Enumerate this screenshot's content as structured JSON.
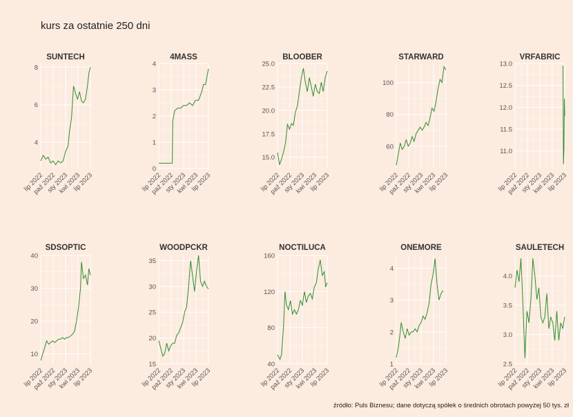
{
  "title": "kurs za ostatnie 250 dni",
  "caption": "źródło: Puls Biznesu; dane dotyczą spółek o średnich obrotach powyżej 50 tys. zł",
  "colors": {
    "background": "#fcebdf",
    "grid": "#ffffff",
    "series": "#2e8b2e"
  },
  "chart_data": [
    {
      "type": "line",
      "title": "SUNTECH",
      "x_ticks": [
        "lip 2022",
        "paź 2022",
        "sty 2023",
        "kwi 2023",
        "lip 2023"
      ],
      "ylim": [
        2.6,
        8.2
      ],
      "y_ticks": [
        4,
        6,
        8
      ],
      "y_tick_labels": [
        "4",
        "6",
        "8"
      ],
      "values": [
        [
          0,
          3.0
        ],
        [
          5,
          3.3
        ],
        [
          10,
          3.1
        ],
        [
          15,
          3.2
        ],
        [
          20,
          2.9
        ],
        [
          25,
          3.0
        ],
        [
          30,
          2.8
        ],
        [
          35,
          3.0
        ],
        [
          40,
          2.9
        ],
        [
          45,
          3.0
        ],
        [
          50,
          3.5
        ],
        [
          55,
          3.8
        ],
        [
          58,
          4.6
        ],
        [
          62,
          5.3
        ],
        [
          64,
          6.2
        ],
        [
          66,
          7.0
        ],
        [
          70,
          6.6
        ],
        [
          74,
          6.3
        ],
        [
          78,
          6.7
        ],
        [
          82,
          6.2
        ],
        [
          86,
          6.1
        ],
        [
          90,
          6.3
        ],
        [
          94,
          7.0
        ],
        [
          97,
          7.7
        ],
        [
          100,
          8.0
        ]
      ]
    },
    {
      "type": "line",
      "title": "4MASS",
      "x_ticks": [
        "lip 2022",
        "paź 2022",
        "sty 2023",
        "kwi 2023",
        "lip 2023"
      ],
      "ylim": [
        0,
        4
      ],
      "y_ticks": [
        0,
        1,
        2,
        3,
        4
      ],
      "y_tick_labels": [
        "0",
        "1",
        "2",
        "3",
        "4"
      ],
      "values": [
        [
          0,
          0.2
        ],
        [
          10,
          0.2
        ],
        [
          20,
          0.2
        ],
        [
          27,
          0.2
        ],
        [
          28,
          1.8
        ],
        [
          32,
          2.2
        ],
        [
          38,
          2.3
        ],
        [
          44,
          2.3
        ],
        [
          50,
          2.4
        ],
        [
          56,
          2.4
        ],
        [
          62,
          2.5
        ],
        [
          68,
          2.4
        ],
        [
          74,
          2.6
        ],
        [
          80,
          2.6
        ],
        [
          86,
          2.9
        ],
        [
          90,
          3.2
        ],
        [
          94,
          3.2
        ],
        [
          97,
          3.5
        ],
        [
          100,
          3.8
        ]
      ]
    },
    {
      "type": "line",
      "title": "BLOOBER",
      "x_ticks": [
        "lip 2022",
        "paź 2022",
        "sty 2023",
        "kwi 2023",
        "lip 2023"
      ],
      "ylim": [
        13.8,
        25.0
      ],
      "y_ticks": [
        15,
        17.5,
        20,
        22.5,
        25
      ],
      "y_tick_labels": [
        "15.0",
        "17.5",
        "20.0",
        "22.5",
        "25.0"
      ],
      "values": [
        [
          0,
          15.5
        ],
        [
          4,
          14.2
        ],
        [
          8,
          14.8
        ],
        [
          12,
          15.5
        ],
        [
          16,
          16.5
        ],
        [
          20,
          18.5
        ],
        [
          24,
          18.0
        ],
        [
          28,
          18.6
        ],
        [
          32,
          18.4
        ],
        [
          36,
          19.8
        ],
        [
          40,
          20.5
        ],
        [
          44,
          22.0
        ],
        [
          48,
          23.5
        ],
        [
          52,
          24.5
        ],
        [
          56,
          23.0
        ],
        [
          60,
          22.0
        ],
        [
          64,
          23.5
        ],
        [
          68,
          22.5
        ],
        [
          72,
          21.5
        ],
        [
          76,
          22.8
        ],
        [
          80,
          22.0
        ],
        [
          84,
          21.8
        ],
        [
          88,
          23.0
        ],
        [
          92,
          22.0
        ],
        [
          96,
          23.5
        ],
        [
          100,
          24.2
        ]
      ]
    },
    {
      "type": "line",
      "title": "STARWARD",
      "x_ticks": [
        "lip 2022",
        "paź 2022",
        "sty 2023",
        "kwi 2023",
        "lip 2023"
      ],
      "ylim": [
        46,
        112
      ],
      "y_ticks": [
        60,
        80,
        100
      ],
      "y_tick_labels": [
        "60",
        "80",
        "100"
      ],
      "values": [
        [
          0,
          48
        ],
        [
          4,
          55
        ],
        [
          8,
          62
        ],
        [
          12,
          58
        ],
        [
          16,
          60
        ],
        [
          20,
          64
        ],
        [
          24,
          60
        ],
        [
          28,
          62
        ],
        [
          32,
          66
        ],
        [
          36,
          63
        ],
        [
          40,
          68
        ],
        [
          44,
          70
        ],
        [
          48,
          72
        ],
        [
          52,
          70
        ],
        [
          56,
          72
        ],
        [
          60,
          75
        ],
        [
          64,
          73
        ],
        [
          68,
          78
        ],
        [
          72,
          84
        ],
        [
          76,
          82
        ],
        [
          80,
          88
        ],
        [
          84,
          96
        ],
        [
          88,
          102
        ],
        [
          92,
          100
        ],
        [
          96,
          110
        ],
        [
          100,
          108
        ]
      ]
    },
    {
      "type": "line",
      "title": "VRFABRIC",
      "x_ticks": [
        "lip 2022",
        "paź 2022",
        "sty 2023",
        "kwi 2023",
        "lip 2023"
      ],
      "ylim": [
        10.6,
        13.0
      ],
      "y_ticks": [
        11,
        11.5,
        12,
        12.5,
        13
      ],
      "y_tick_labels": [
        "11.0",
        "11.5",
        "12.0",
        "12.5",
        "13.0"
      ],
      "values": [
        [
          96.5,
          12.95
        ],
        [
          97.5,
          10.7
        ],
        [
          98.5,
          11.0
        ],
        [
          99.5,
          12.2
        ],
        [
          100,
          11.8
        ]
      ]
    },
    {
      "type": "line",
      "title": "SDSOPTIC",
      "x_ticks": [
        "lip 2022",
        "paź 2022",
        "sty 2023",
        "kwi 2023",
        "lip 2023"
      ],
      "ylim": [
        7,
        40
      ],
      "y_ticks": [
        10,
        20,
        30,
        40
      ],
      "y_tick_labels": [
        "10",
        "20",
        "30",
        "40"
      ],
      "values": [
        [
          0,
          8
        ],
        [
          4,
          10
        ],
        [
          8,
          12
        ],
        [
          12,
          14
        ],
        [
          16,
          13
        ],
        [
          20,
          13.5
        ],
        [
          24,
          14
        ],
        [
          28,
          13.5
        ],
        [
          32,
          14
        ],
        [
          36,
          14.5
        ],
        [
          40,
          14.5
        ],
        [
          44,
          15
        ],
        [
          48,
          14.5
        ],
        [
          52,
          15
        ],
        [
          56,
          15
        ],
        [
          60,
          15.5
        ],
        [
          64,
          16
        ],
        [
          68,
          17
        ],
        [
          72,
          20
        ],
        [
          76,
          24
        ],
        [
          80,
          30
        ],
        [
          82,
          38
        ],
        [
          86,
          33
        ],
        [
          90,
          34
        ],
        [
          94,
          31
        ],
        [
          97,
          36
        ],
        [
          100,
          34
        ]
      ]
    },
    {
      "type": "line",
      "title": "WOODPCKR",
      "x_ticks": [
        "lip 2022",
        "paź 2022",
        "sty 2023",
        "kwi 2023",
        "lip 2023"
      ],
      "ylim": [
        15,
        36
      ],
      "y_ticks": [
        15,
        20,
        25,
        30,
        35
      ],
      "y_tick_labels": [
        "15",
        "20",
        "25",
        "30",
        "35"
      ],
      "values": [
        [
          0,
          19.5
        ],
        [
          4,
          18
        ],
        [
          8,
          16.5
        ],
        [
          12,
          17
        ],
        [
          16,
          19
        ],
        [
          20,
          17.5
        ],
        [
          24,
          18.5
        ],
        [
          28,
          19
        ],
        [
          32,
          19
        ],
        [
          36,
          20.5
        ],
        [
          40,
          21
        ],
        [
          44,
          22
        ],
        [
          48,
          23
        ],
        [
          52,
          25
        ],
        [
          56,
          26
        ],
        [
          60,
          30
        ],
        [
          64,
          35
        ],
        [
          68,
          32
        ],
        [
          72,
          29
        ],
        [
          76,
          33
        ],
        [
          80,
          36
        ],
        [
          84,
          31
        ],
        [
          88,
          30
        ],
        [
          92,
          31
        ],
        [
          96,
          30
        ],
        [
          100,
          29.5
        ]
      ]
    },
    {
      "type": "line",
      "title": "NOCTILUCA",
      "x_ticks": [
        "lip 2022",
        "paź 2022",
        "sty 2023",
        "kwi 2023",
        "lip 2023"
      ],
      "ylim": [
        40,
        160
      ],
      "y_ticks": [
        40,
        80,
        120,
        160
      ],
      "y_tick_labels": [
        "40",
        "80",
        "120",
        "160"
      ],
      "values": [
        [
          0,
          50
        ],
        [
          5,
          45
        ],
        [
          8,
          50
        ],
        [
          12,
          80
        ],
        [
          15,
          120
        ],
        [
          18,
          105
        ],
        [
          22,
          100
        ],
        [
          26,
          110
        ],
        [
          30,
          95
        ],
        [
          34,
          100
        ],
        [
          38,
          95
        ],
        [
          42,
          100
        ],
        [
          46,
          110
        ],
        [
          50,
          105
        ],
        [
          54,
          120
        ],
        [
          58,
          108
        ],
        [
          62,
          115
        ],
        [
          66,
          118
        ],
        [
          70,
          112
        ],
        [
          74,
          125
        ],
        [
          78,
          130
        ],
        [
          82,
          145
        ],
        [
          86,
          155
        ],
        [
          90,
          138
        ],
        [
          94,
          142
        ],
        [
          97,
          125
        ],
        [
          100,
          130
        ]
      ]
    },
    {
      "type": "line",
      "title": "ONEMORE",
      "x_ticks": [
        "lip 2022",
        "paź 2022",
        "sty 2023",
        "kwi 2023",
        "lip 2023"
      ],
      "ylim": [
        1,
        4.4
      ],
      "y_ticks": [
        1,
        2,
        3,
        4
      ],
      "y_tick_labels": [
        "1",
        "2",
        "3",
        "4"
      ],
      "values": [
        [
          0,
          1.2
        ],
        [
          4,
          1.5
        ],
        [
          8,
          2.0
        ],
        [
          10,
          2.3
        ],
        [
          14,
          2.0
        ],
        [
          18,
          1.8
        ],
        [
          22,
          2.1
        ],
        [
          26,
          1.9
        ],
        [
          30,
          2.0
        ],
        [
          34,
          2.0
        ],
        [
          38,
          2.1
        ],
        [
          42,
          2.0
        ],
        [
          46,
          2.2
        ],
        [
          50,
          2.3
        ],
        [
          54,
          2.5
        ],
        [
          58,
          2.4
        ],
        [
          62,
          2.6
        ],
        [
          66,
          2.9
        ],
        [
          70,
          3.5
        ],
        [
          74,
          3.8
        ],
        [
          78,
          4.3
        ],
        [
          82,
          3.5
        ],
        [
          86,
          3.0
        ],
        [
          90,
          3.2
        ],
        [
          94,
          3.3
        ]
      ]
    },
    {
      "type": "line",
      "title": "SAULETECH",
      "x_ticks": [
        "lip 2022",
        "paź 2022",
        "sty 2023",
        "kwi 2023",
        "lip 2023"
      ],
      "ylim": [
        2.5,
        4.35
      ],
      "y_ticks": [
        2.5,
        3,
        3.5,
        4
      ],
      "y_tick_labels": [
        "2.5",
        "3.0",
        "3.5",
        "4.0"
      ],
      "values": [
        [
          0,
          3.8
        ],
        [
          4,
          4.1
        ],
        [
          8,
          3.9
        ],
        [
          12,
          4.3
        ],
        [
          16,
          3.5
        ],
        [
          20,
          2.6
        ],
        [
          24,
          3.4
        ],
        [
          28,
          3.2
        ],
        [
          32,
          3.6
        ],
        [
          36,
          4.3
        ],
        [
          40,
          4.0
        ],
        [
          44,
          3.6
        ],
        [
          48,
          3.8
        ],
        [
          52,
          3.3
        ],
        [
          56,
          3.2
        ],
        [
          60,
          3.3
        ],
        [
          64,
          3.7
        ],
        [
          68,
          3.1
        ],
        [
          72,
          3.3
        ],
        [
          76,
          3.2
        ],
        [
          80,
          2.9
        ],
        [
          84,
          3.4
        ],
        [
          88,
          2.9
        ],
        [
          92,
          3.2
        ],
        [
          96,
          3.1
        ],
        [
          100,
          3.3
        ]
      ]
    }
  ]
}
